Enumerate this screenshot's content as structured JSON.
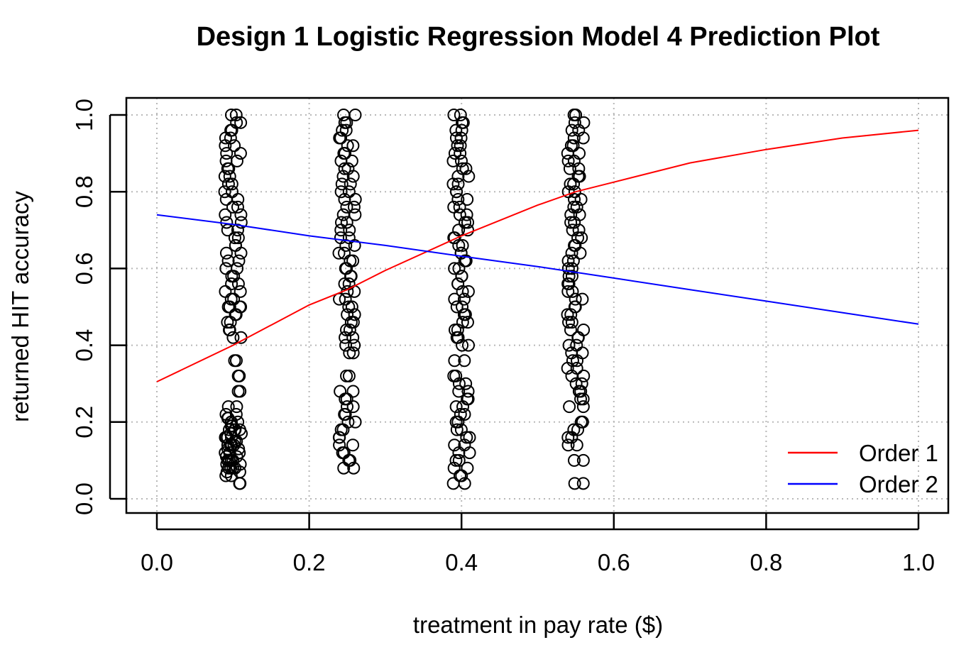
{
  "chart_data": {
    "type": "scatter",
    "title": "Design 1 Logistic Regression Model 4 Prediction Plot",
    "xlabel": "treatment in pay rate ($)",
    "ylabel": "returned HIT accuracy",
    "xlim": [
      0.0,
      1.0
    ],
    "ylim": [
      0.0,
      1.0
    ],
    "x_ticks": [
      "0.0",
      "0.2",
      "0.4",
      "0.6",
      "0.8",
      "1.0"
    ],
    "y_ticks": [
      "0.0",
      "0.2",
      "0.4",
      "0.6",
      "0.8",
      "1.0"
    ],
    "grid": true,
    "legend_position": "bottom-right",
    "colors": {
      "order1": "#ff0000",
      "order2": "#0000ff",
      "points": "#000000"
    },
    "scatter": {
      "groups": [
        {
          "x": 0.1,
          "y": [
            0.04,
            0.06,
            0.07,
            0.08,
            0.08,
            0.09,
            0.1,
            0.1,
            0.11,
            0.12,
            0.12,
            0.13,
            0.14,
            0.14,
            0.15,
            0.16,
            0.16,
            0.17,
            0.18,
            0.18,
            0.19,
            0.2,
            0.2,
            0.21,
            0.22,
            0.24,
            0.28,
            0.32,
            0.36,
            0.42,
            0.44,
            0.46,
            0.48,
            0.5,
            0.5,
            0.52,
            0.54,
            0.56,
            0.58,
            0.6,
            0.62,
            0.64,
            0.66,
            0.68,
            0.7,
            0.72,
            0.74,
            0.76,
            0.78,
            0.8,
            0.82,
            0.84,
            0.86,
            0.88,
            0.9,
            0.92,
            0.94,
            0.96,
            0.98,
            1.0
          ]
        },
        {
          "x": 0.25,
          "y": [
            0.08,
            0.1,
            0.12,
            0.14,
            0.16,
            0.18,
            0.2,
            0.22,
            0.24,
            0.26,
            0.28,
            0.32,
            0.38,
            0.4,
            0.42,
            0.44,
            0.46,
            0.48,
            0.5,
            0.52,
            0.54,
            0.56,
            0.58,
            0.6,
            0.62,
            0.64,
            0.66,
            0.68,
            0.7,
            0.72,
            0.74,
            0.76,
            0.78,
            0.8,
            0.82,
            0.84,
            0.86,
            0.88,
            0.9,
            0.92,
            0.94,
            0.96,
            0.98,
            1.0
          ]
        },
        {
          "x": 0.4,
          "y": [
            0.04,
            0.06,
            0.08,
            0.1,
            0.12,
            0.14,
            0.16,
            0.18,
            0.2,
            0.22,
            0.24,
            0.26,
            0.28,
            0.3,
            0.32,
            0.36,
            0.4,
            0.42,
            0.44,
            0.46,
            0.48,
            0.5,
            0.52,
            0.54,
            0.56,
            0.58,
            0.6,
            0.62,
            0.64,
            0.66,
            0.68,
            0.7,
            0.72,
            0.74,
            0.76,
            0.78,
            0.8,
            0.82,
            0.84,
            0.86,
            0.88,
            0.9,
            0.92,
            0.94,
            0.96,
            0.98,
            1.0
          ]
        },
        {
          "x": 0.55,
          "y": [
            0.04,
            0.1,
            0.14,
            0.16,
            0.18,
            0.2,
            0.24,
            0.26,
            0.28,
            0.3,
            0.32,
            0.34,
            0.36,
            0.38,
            0.4,
            0.42,
            0.44,
            0.46,
            0.48,
            0.5,
            0.52,
            0.54,
            0.56,
            0.58,
            0.6,
            0.62,
            0.64,
            0.66,
            0.68,
            0.7,
            0.72,
            0.74,
            0.76,
            0.78,
            0.8,
            0.82,
            0.84,
            0.86,
            0.88,
            0.9,
            0.92,
            0.94,
            0.96,
            0.98,
            1.0
          ]
        }
      ]
    },
    "series": [
      {
        "name": "Order 1",
        "type": "line",
        "color": "#ff0000",
        "x": [
          0.0,
          0.1,
          0.2,
          0.25,
          0.3,
          0.4,
          0.5,
          0.55,
          0.6,
          0.7,
          0.8,
          0.9,
          1.0
        ],
        "y": [
          0.305,
          0.4,
          0.505,
          0.545,
          0.595,
          0.685,
          0.765,
          0.8,
          0.825,
          0.875,
          0.91,
          0.94,
          0.96
        ]
      },
      {
        "name": "Order 2",
        "type": "line",
        "color": "#0000ff",
        "x": [
          0.0,
          0.1,
          0.2,
          0.3,
          0.4,
          0.5,
          0.6,
          0.7,
          0.8,
          0.9,
          1.0
        ],
        "y": [
          0.74,
          0.715,
          0.685,
          0.66,
          0.632,
          0.605,
          0.575,
          0.545,
          0.515,
          0.485,
          0.455
        ]
      }
    ]
  }
}
